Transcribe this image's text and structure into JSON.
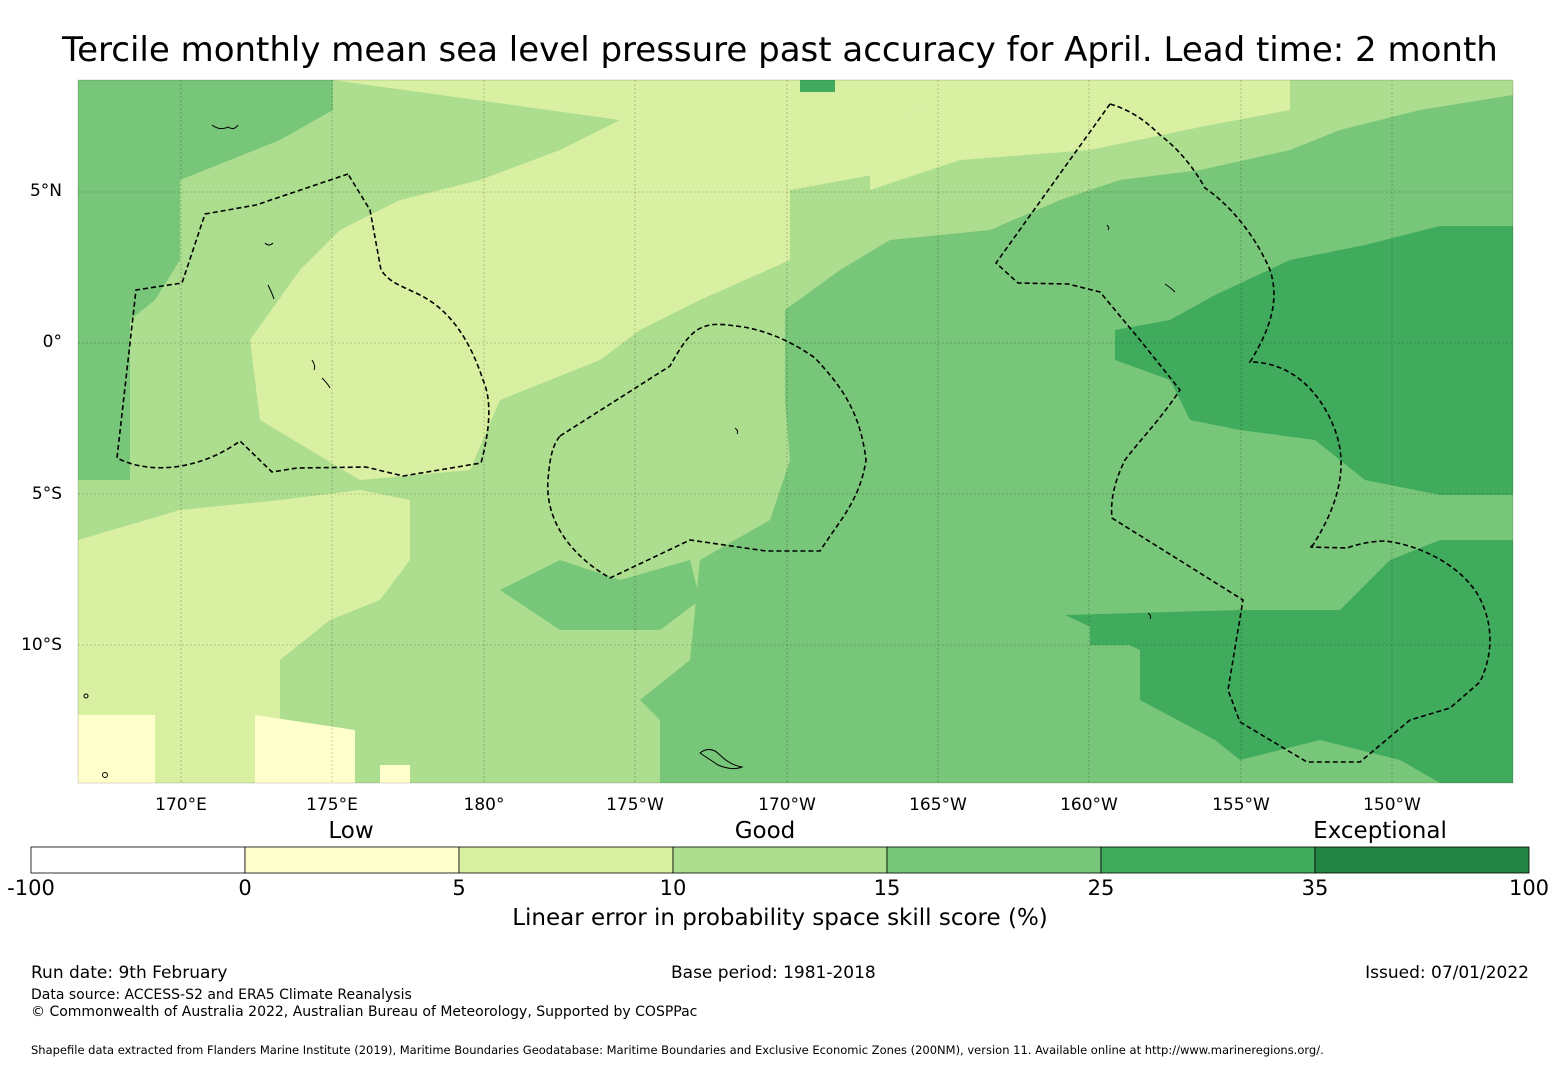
{
  "title": "Tercile monthly mean sea level pressure past accuracy for April. Lead time: 2 month",
  "map": {
    "lat_labels": [
      "5°N",
      "0°",
      "5°S",
      "10°S"
    ],
    "lon_labels": [
      "170°E",
      "175°E",
      "180°",
      "175°W",
      "170°W",
      "165°W",
      "160°W",
      "155°W",
      "150°W"
    ],
    "lon_range": [
      "166.5°E",
      "147.5°W"
    ],
    "lat_range": [
      "8.5°N",
      "14.5°S"
    ],
    "dashed_lines": "Exclusive Economic Zone boundaries"
  },
  "colorbar": {
    "category_labels": [
      "Low",
      "Good",
      "Exceptional"
    ],
    "tick_labels": [
      "-100",
      "0",
      "5",
      "10",
      "15",
      "25",
      "35",
      "100"
    ],
    "bins": [
      {
        "range": "-100 to 0",
        "color": "#ffffff"
      },
      {
        "range": "0 to 5",
        "color": "#ffffcc"
      },
      {
        "range": "5 to 10",
        "color": "#d9f0a3"
      },
      {
        "range": "10 to 15",
        "color": "#addd8e"
      },
      {
        "range": "15 to 25",
        "color": "#78c679"
      },
      {
        "range": "25 to 35",
        "color": "#41ab5d"
      },
      {
        "range": "35 to 100",
        "color": "#238443"
      }
    ],
    "title": "Linear error in probability space skill score (%)"
  },
  "footer": {
    "run_date": "Run date: 9th February",
    "base_period": "Base period: 1981-2018",
    "issued": "Issued: 07/01/2022",
    "data_source": "Data source: ACCESS-S2 and ERA5 Climate Reanalysis",
    "copyright": "© Commonwealth of Australia 2022, Australian Bureau of Meteorology, Supported by COSPPac",
    "shapefile_credit": "Shapefile data extracted from Flanders Marine Institute (2019), Maritime Boundaries Geodatabase: Maritime Boundaries and Exclusive Economic Zones (200NM), version 11. Available online at http://www.marineregions.org/."
  }
}
